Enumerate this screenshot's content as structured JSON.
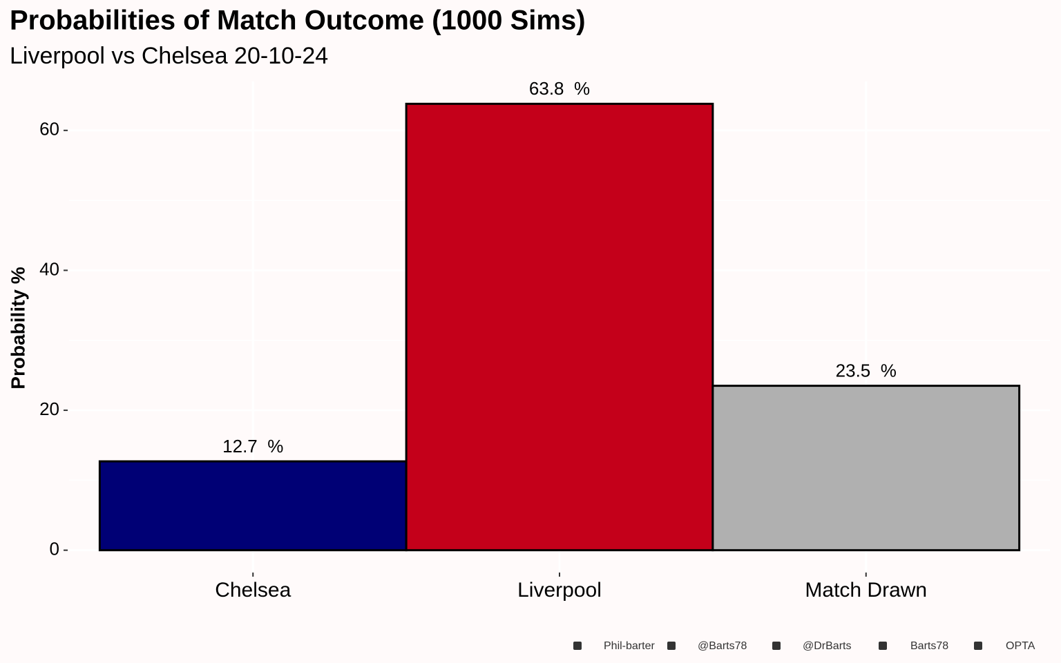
{
  "chart_data": {
    "type": "bar",
    "title": "Probabilities of Match Outcome (1000 Sims)",
    "subtitle": "Liverpool vs Chelsea 20-10-24",
    "y_label": "Probability %",
    "categories": [
      "Chelsea",
      "Liverpool",
      "Match Drawn"
    ],
    "values": [
      12.7,
      63.8,
      23.5
    ],
    "value_labels": [
      "12.7  %",
      "63.8  %",
      "23.5  %"
    ],
    "colors": [
      "#000075",
      "#c4001a",
      "#b0b0b0"
    ],
    "ylim": [
      -3.19,
      66.99
    ],
    "yticks": [
      0,
      20,
      40,
      60
    ],
    "minor_yticks": [
      10,
      30,
      50
    ],
    "grid": true,
    "caption": [
      "Phil-barter",
      "@Barts78",
      "@DrBarts",
      "Barts78",
      "OPTA"
    ]
  }
}
